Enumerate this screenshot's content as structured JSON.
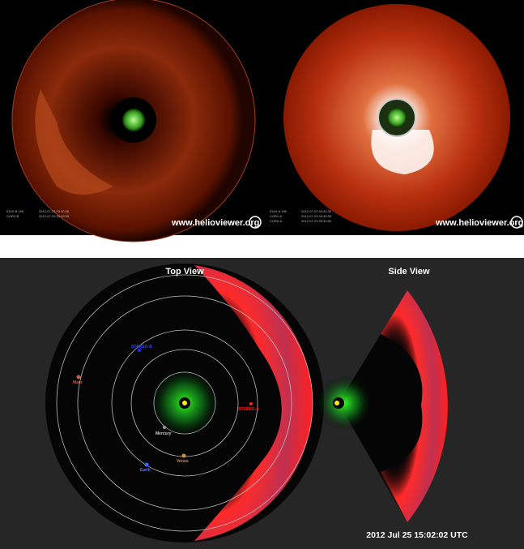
{
  "images": [
    {
      "watermark": "www.helioviewer.org",
      "info": [
        "EUVI-B 195",
        "COR2-B",
        "2012-07-23 03:40:58",
        "2012-07-23 03:39:05"
      ]
    },
    {
      "watermark": "www.helioviewer.org",
      "info": [
        "EUVI-A 195",
        "COR1-A",
        "COR2-A",
        "2012-07-23 03:40:30",
        "2012-07-23 03:40:00",
        "2012-07-23 03:39:00"
      ]
    }
  ],
  "model": {
    "top_view_title": "Top View",
    "side_view_title": "Side View",
    "timestamp": "2012 Jul 25 15:02:02 UTC",
    "bodies": [
      "STEREO-B",
      "Mars",
      "Mercury",
      "Venus",
      "Earth",
      "STEREO-A"
    ]
  }
}
